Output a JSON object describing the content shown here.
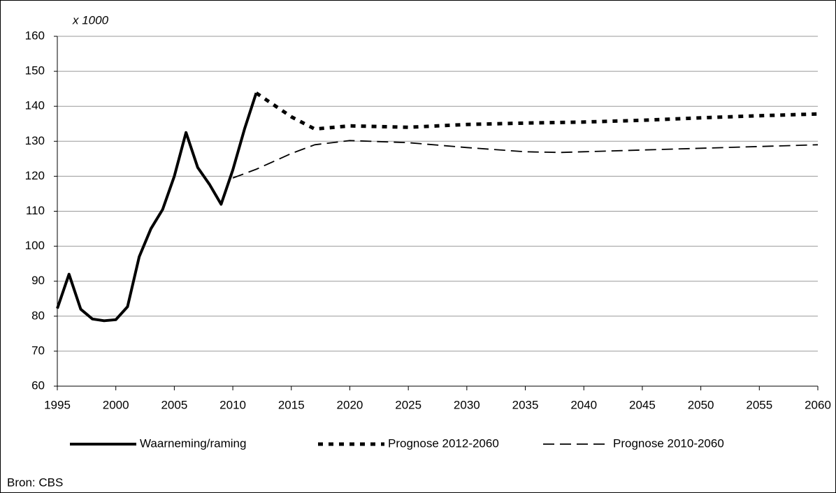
{
  "chart_data": {
    "type": "line",
    "unit_label": "x 1000",
    "source": "Bron: CBS",
    "xlim": [
      1995,
      2060
    ],
    "xticks": [
      1995,
      2000,
      2005,
      2010,
      2015,
      2020,
      2025,
      2030,
      2035,
      2040,
      2045,
      2050,
      2055,
      2060
    ],
    "ylim": [
      60,
      160
    ],
    "yticks": [
      60,
      70,
      80,
      90,
      100,
      110,
      120,
      130,
      140,
      150,
      160
    ],
    "grid": true,
    "legend": "bottom",
    "series": [
      {
        "name": "Waarneming/raming",
        "color": "#000000",
        "style": "solid",
        "x": [
          1995,
          1996,
          1997,
          1998,
          1999,
          2000,
          2001,
          2002,
          2003,
          2004,
          2005,
          2006,
          2007,
          2008,
          2009,
          2010,
          2011,
          2012
        ],
        "values": [
          82.2,
          92,
          82,
          79.2,
          78.7,
          79,
          82.7,
          97,
          105,
          110.5,
          120,
          132.5,
          122.5,
          117.7,
          112,
          121.8,
          133.5,
          143.8
        ]
      },
      {
        "name": "Prognose 2012-2060",
        "color": "#000000",
        "style": "dotted",
        "x": [
          2012,
          2015,
          2017,
          2020,
          2025,
          2030,
          2035,
          2040,
          2045,
          2050,
          2055,
          2060
        ],
        "values": [
          143.8,
          137,
          133.5,
          134.4,
          134,
          134.8,
          135.2,
          135.5,
          136,
          136.7,
          137.3,
          137.8
        ]
      },
      {
        "name": "Prognose 2010-2060",
        "color": "#000000",
        "style": "dashed",
        "x": [
          2010,
          2012,
          2015,
          2017,
          2020,
          2025,
          2030,
          2035,
          2038,
          2040,
          2045,
          2050,
          2055,
          2060
        ],
        "values": [
          119.5,
          122,
          126.5,
          129,
          130.2,
          129.6,
          128.2,
          127,
          126.8,
          127,
          127.5,
          128,
          128.5,
          129
        ]
      }
    ]
  }
}
